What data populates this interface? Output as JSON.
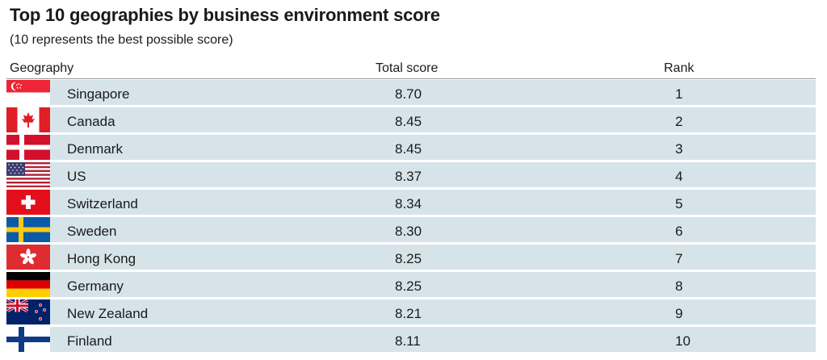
{
  "chart_data": {
    "type": "table",
    "title": "Top 10 geographies by business environment score",
    "subtitle": "(10 represents the best possible score)",
    "columns": [
      "Geography",
      "Total score",
      "Rank"
    ],
    "rows": [
      {
        "geography": "Singapore",
        "score": "8.70",
        "rank": "1",
        "flag": "singapore-flag"
      },
      {
        "geography": "Canada",
        "score": "8.45",
        "rank": "2",
        "flag": "canada-flag"
      },
      {
        "geography": "Denmark",
        "score": "8.45",
        "rank": "3",
        "flag": "denmark-flag"
      },
      {
        "geography": "US",
        "score": "8.37",
        "rank": "4",
        "flag": "us-flag"
      },
      {
        "geography": "Switzerland",
        "score": "8.34",
        "rank": "5",
        "flag": "switzerland-flag"
      },
      {
        "geography": "Sweden",
        "score": "8.30",
        "rank": "6",
        "flag": "sweden-flag"
      },
      {
        "geography": "Hong Kong",
        "score": "8.25",
        "rank": "7",
        "flag": "hong-kong-flag"
      },
      {
        "geography": "Germany",
        "score": "8.25",
        "rank": "8",
        "flag": "germany-flag"
      },
      {
        "geography": "New Zealand",
        "score": "8.21",
        "rank": "9",
        "flag": "new-zealand-flag"
      },
      {
        "geography": "Finland",
        "score": "8.11",
        "rank": "10",
        "flag": "finland-flag"
      }
    ]
  },
  "colors": {
    "row_background": "#d6e4ea",
    "header_rule": "#9a9a9a"
  }
}
